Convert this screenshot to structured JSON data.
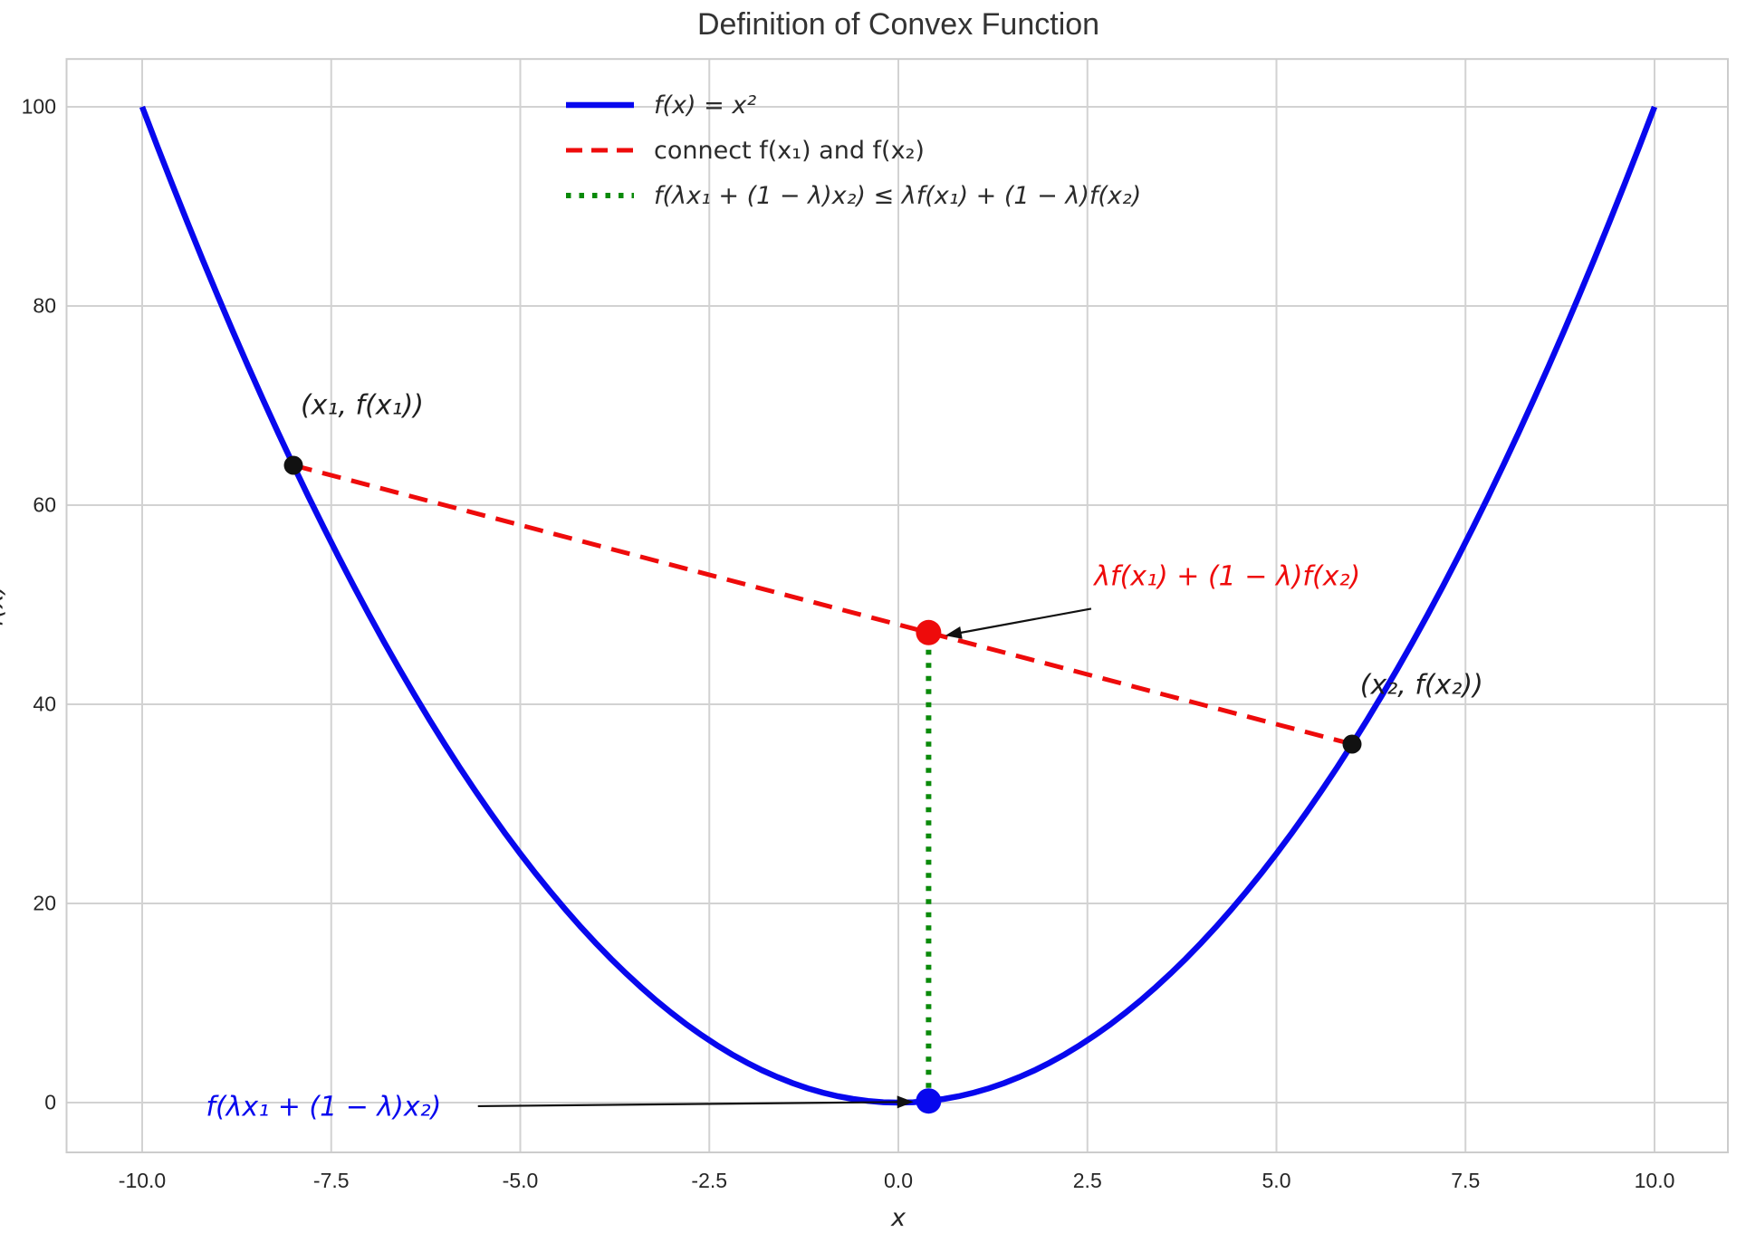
{
  "chart_data": {
    "type": "line",
    "title": "Definition of Convex Function",
    "xlabel": "x",
    "ylabel": "f(x)",
    "xlim": [
      -11,
      11
    ],
    "ylim": [
      -5,
      104.8
    ],
    "grid": true,
    "legend_position": "upper center-left",
    "x_ticks": [
      "-10.0",
      "-7.5",
      "-5.0",
      "-2.5",
      "0.0",
      "2.5",
      "5.0",
      "7.5",
      "10.0"
    ],
    "x_tick_values": [
      -10,
      -7.5,
      -5,
      -2.5,
      0,
      2.5,
      5,
      7.5,
      10
    ],
    "y_ticks": [
      "0",
      "20",
      "40",
      "60",
      "80",
      "100"
    ],
    "y_tick_values": [
      0,
      20,
      40,
      60,
      80,
      100
    ],
    "lambda": 0.4,
    "series": [
      {
        "name": "f(x) = x²",
        "kind": "function",
        "expr": "x^2",
        "x_min": -10,
        "x_max": 10,
        "color": "#0808ee",
        "style": "solid",
        "width": 6.5
      },
      {
        "name": "connect f(x₁) and f(x₂)",
        "kind": "segment",
        "points": [
          [
            -8,
            64
          ],
          [
            6,
            36
          ]
        ],
        "color": "#ee0b0b",
        "style": "dashed",
        "width": 5
      },
      {
        "name": "f(λx₁ + (1 − λ)x₂) ≤ λf(x₁) + (1 − λ)f(x₂)",
        "kind": "segment",
        "points": [
          [
            0.4,
            0.16
          ],
          [
            0.4,
            47.2
          ]
        ],
        "color": "#0a8a0a",
        "style": "dotted",
        "width": 6
      }
    ],
    "points": [
      {
        "id": "x1",
        "x": -8,
        "y": 64,
        "color": "#111111",
        "r": 10.5
      },
      {
        "id": "x2",
        "x": 6,
        "y": 36,
        "color": "#111111",
        "r": 10.5
      },
      {
        "id": "blue",
        "x": 0.4,
        "y": 0.16,
        "color": "#0808ee",
        "r": 14
      },
      {
        "id": "red",
        "x": 0.4,
        "y": 47.2,
        "color": "#ee0b0b",
        "r": 14
      }
    ],
    "annotations": [
      {
        "text": "(x₁, f(x₁))",
        "color": "#1f1f1f",
        "cx": -7.09,
        "cy": 70.0,
        "arrow": null
      },
      {
        "text": "(x₂, f(x₂))",
        "color": "#1f1f1f",
        "cx": 6.92,
        "cy": 41.9,
        "arrow": null
      },
      {
        "text": "λf(x₁) + (1 − λ)f(x₂)",
        "color": "#ee0b0b",
        "cx": 4.35,
        "cy": 52.8,
        "arrow": {
          "x1": 2.55,
          "y1": 49.6,
          "x2": 0.62,
          "y2": 46.9
        }
      },
      {
        "text": "f(λx₁ + (1 − λ)x₂)",
        "color": "#0808ee",
        "cx": -7.6,
        "cy": -0.45,
        "arrow": {
          "x1": -5.56,
          "y1": -0.36,
          "x2": 0.2,
          "y2": 0.07
        }
      }
    ],
    "colors": {
      "grid": "#d2d2d2",
      "frame": "#cccccc",
      "arrow": "#111111"
    }
  }
}
